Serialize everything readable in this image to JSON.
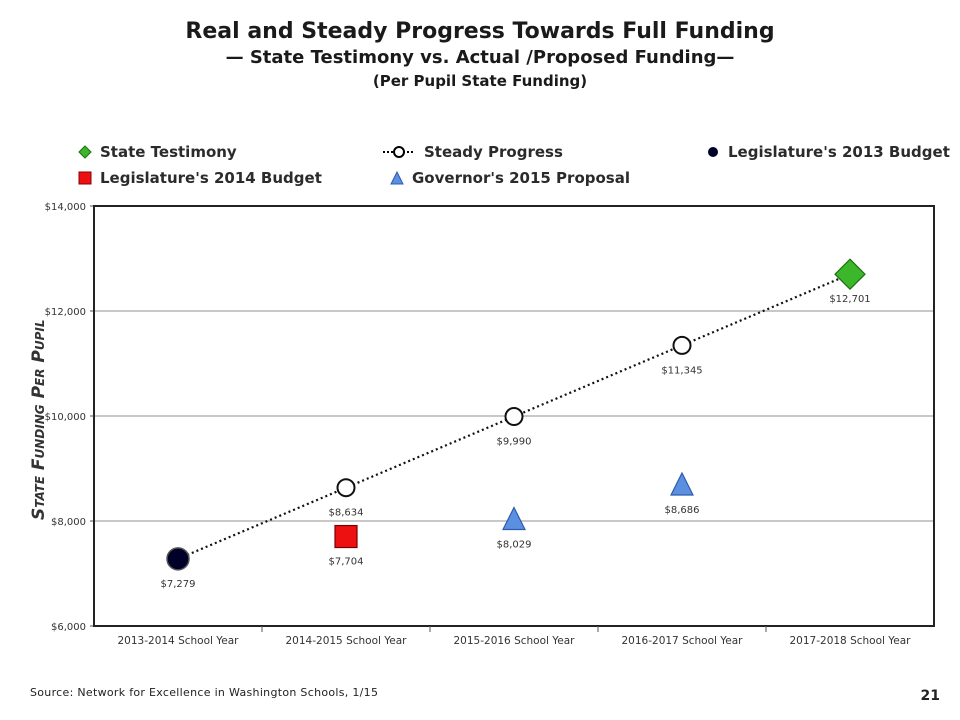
{
  "title": "Real and Steady Progress Towards Full Funding",
  "subtitle": "— State Testimony vs. Actual /Proposed Funding—",
  "note": "(Per Pupil State Funding)",
  "source": "Source: Network for Excellence in Washington Schools, 1/15",
  "page_number": "21",
  "legend": [
    {
      "label": "State Testimony",
      "marker": "diamond",
      "color": "#3cb62a"
    },
    {
      "label": "Steady Progress",
      "marker": "dotted-line-circle",
      "color": "#000000"
    },
    {
      "label": "Legislature's 2013 Budget",
      "marker": "circle",
      "color": "#000028"
    },
    {
      "label": "Legislature's 2014 Budget",
      "marker": "square",
      "color": "#ee1111"
    },
    {
      "label": "Governor's 2015 Proposal",
      "marker": "triangle",
      "color": "#5b8fe0"
    }
  ],
  "chart_data": {
    "type": "scatter",
    "ylabel": "State Funding Per Pupil",
    "xlabel": "",
    "ylim": [
      6000,
      14000
    ],
    "yticks": [
      "$6,000",
      "$8,000",
      "$10,000",
      "$12,000",
      "$14,000"
    ],
    "ytick_values": [
      6000,
      8000,
      10000,
      12000,
      14000
    ],
    "categories": [
      "2013-2014 School Year",
      "2014-2015 School Year",
      "2015-2016 School Year",
      "2016-2017 School Year",
      "2017-2018 School Year"
    ],
    "grid": "horizontal",
    "series": [
      {
        "name": "Steady Progress",
        "marker": "open-circle",
        "line": "dotted",
        "color": "#000000",
        "points": [
          {
            "x": "2014-2015 School Year",
            "y": 8634,
            "label": "$8,634"
          },
          {
            "x": "2015-2016 School Year",
            "y": 9990,
            "label": "$9,990"
          },
          {
            "x": "2016-2017 School Year",
            "y": 11345,
            "label": "$11,345"
          }
        ],
        "line_points": [
          {
            "x": "2013-2014 School Year",
            "y": 7279
          },
          {
            "x": "2014-2015 School Year",
            "y": 8634
          },
          {
            "x": "2015-2016 School Year",
            "y": 9990
          },
          {
            "x": "2016-2017 School Year",
            "y": 11345
          },
          {
            "x": "2017-2018 School Year",
            "y": 12701
          }
        ]
      },
      {
        "name": "Legislature's 2013 Budget",
        "marker": "circle",
        "color": "#000028",
        "points": [
          {
            "x": "2013-2014 School Year",
            "y": 7279,
            "label": "$7,279"
          }
        ]
      },
      {
        "name": "Legislature's 2014 Budget",
        "marker": "square",
        "color": "#ee1111",
        "points": [
          {
            "x": "2014-2015 School Year",
            "y": 7704,
            "label": "$7,704"
          }
        ]
      },
      {
        "name": "Governor's 2015 Proposal",
        "marker": "triangle",
        "color": "#5b8fe0",
        "points": [
          {
            "x": "2015-2016 School Year",
            "y": 8029,
            "label": "$8,029"
          },
          {
            "x": "2016-2017 School Year",
            "y": 8686,
            "label": "$8,686"
          }
        ]
      },
      {
        "name": "State Testimony",
        "marker": "diamond",
        "color": "#3cb62a",
        "points": [
          {
            "x": "2017-2018 School Year",
            "y": 12701,
            "label": "$12,701"
          }
        ]
      }
    ]
  }
}
